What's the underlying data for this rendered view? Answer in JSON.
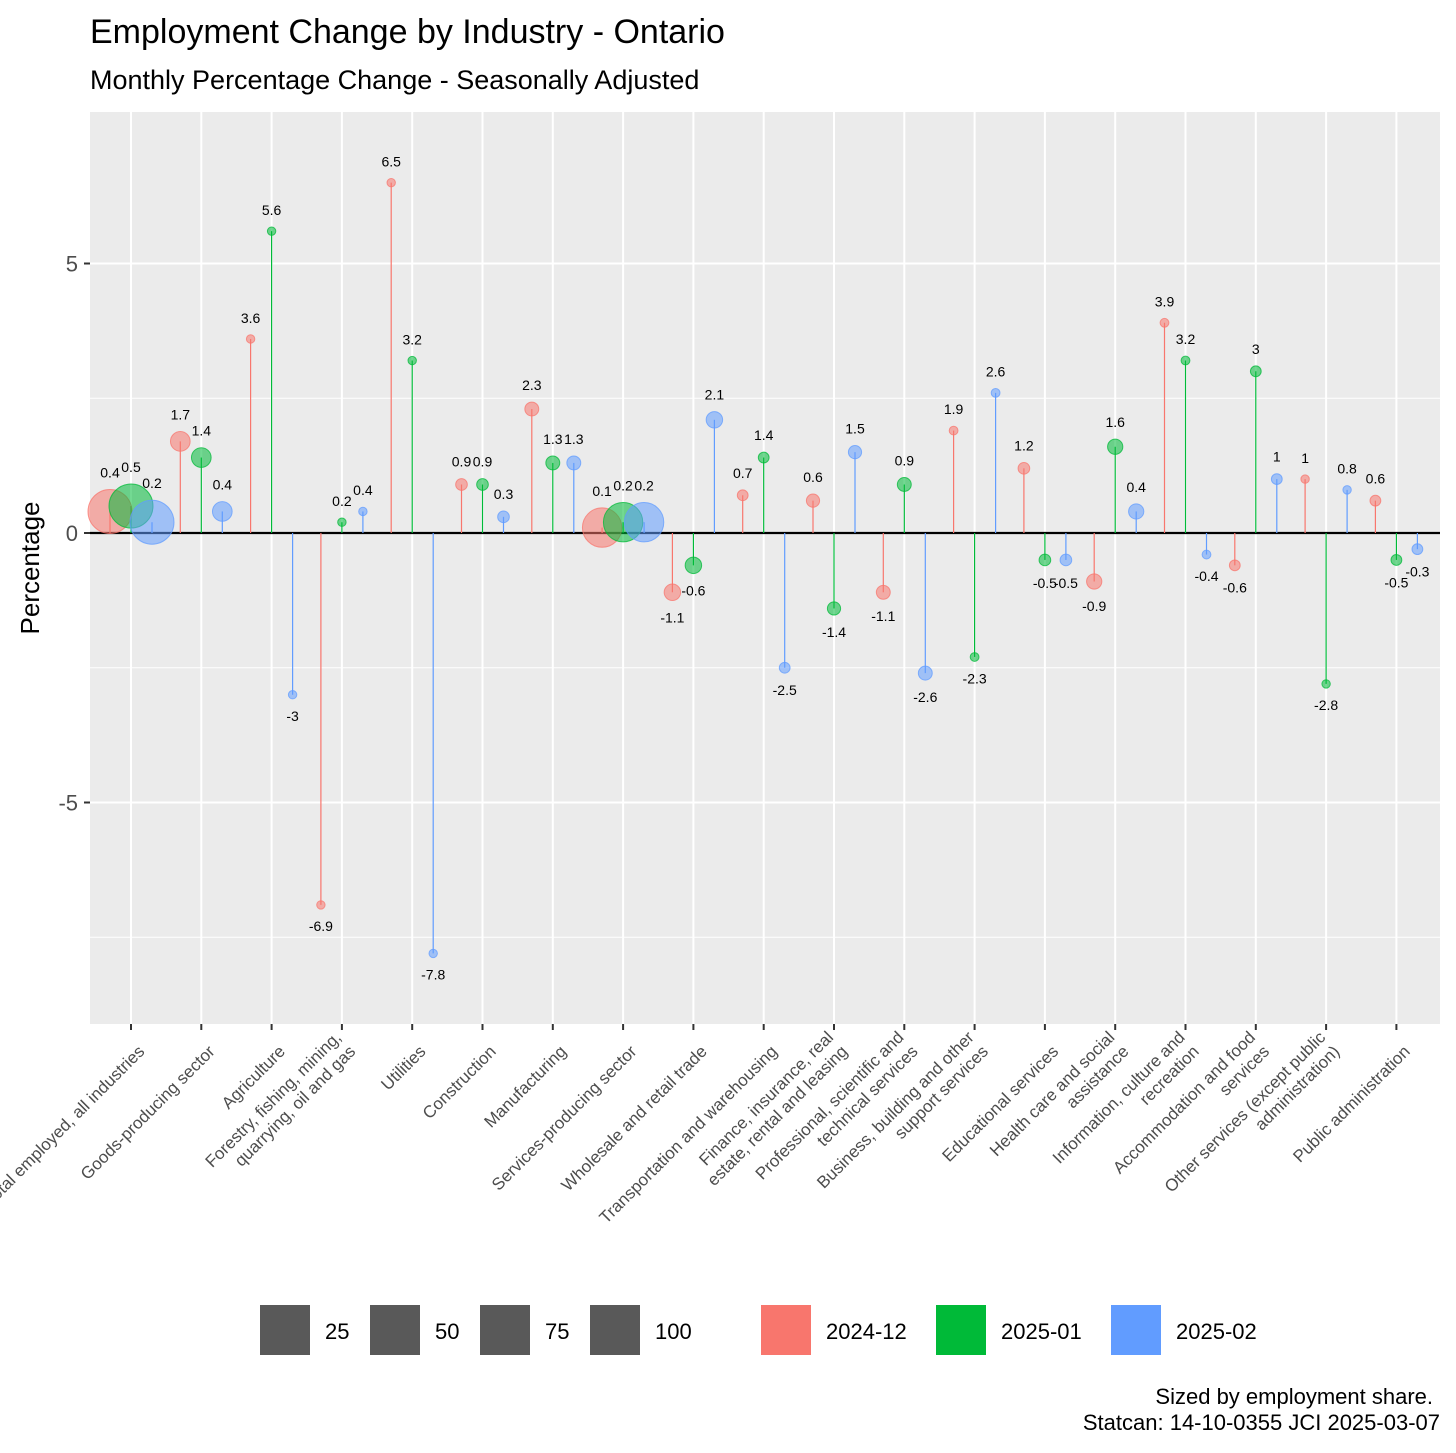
{
  "chart_data": {
    "type": "scatter",
    "title": "Employment Change by Industry - Ontario",
    "subtitle": "Monthly Percentage Change  - Seasonally Adjusted",
    "ylabel": "Percentage",
    "xlabel": "",
    "ylim": [
      -9.2,
      7.8
    ],
    "yticks": [
      -5,
      0,
      5
    ],
    "grid": true,
    "legend_position": "bottom",
    "caption": [
      "Sized by employment share.",
      "Statcan: 14-10-0355 JCI 2025-03-07"
    ],
    "size_legend": [
      25,
      50,
      75,
      100
    ],
    "colors": {
      "2024-12": "#F8766D",
      "2025-01": "#00BA38",
      "2025-02": "#619CFF"
    },
    "categories": [
      "Total employed, all industries",
      "Goods-producing sector",
      "Agriculture",
      "Forestry, fishing, mining, quarrying, oil and gas",
      "Utilities",
      "Construction",
      "Manufacturing",
      "Services-producing sector",
      "Wholesale and retail trade",
      "Transportation and warehousing",
      "Finance, insurance, real estate, rental and leasing",
      "Professional, scientific and technical services",
      "Business, building and other support services",
      "Educational services",
      "Health care and social assistance",
      "Information, culture and recreation",
      "Accommodation and food services",
      "Other services (except public administration)",
      "Public administration"
    ],
    "category_lines": [
      [
        "Total employed, all industries"
      ],
      [
        "Goods-producing sector"
      ],
      [
        "Agriculture"
      ],
      [
        "Forestry, fishing, mining,",
        "quarrying, oil and gas"
      ],
      [
        "Utilities"
      ],
      [
        "Construction"
      ],
      [
        "Manufacturing"
      ],
      [
        "Services-producing sector"
      ],
      [
        "Wholesale and retail trade"
      ],
      [
        "Transportation and warehousing"
      ],
      [
        "Finance, insurance, real",
        "estate, rental and leasing"
      ],
      [
        "Professional, scientific and",
        "technical services"
      ],
      [
        "Business, building and other",
        "support services"
      ],
      [
        "Educational services"
      ],
      [
        "Health care and social",
        "assistance"
      ],
      [
        "Information, culture and",
        "recreation"
      ],
      [
        "Accommodation and food",
        "services"
      ],
      [
        "Other services (except public",
        "administration)"
      ],
      [
        "Public administration"
      ]
    ],
    "employment_share": [
      100,
      20,
      1,
      0.3,
      0.6,
      7,
      10,
      80,
      14,
      6,
      9,
      10,
      4,
      7,
      12,
      4,
      6,
      3,
      6
    ],
    "series": [
      {
        "name": "2024-12",
        "values": [
          0.4,
          1.7,
          3.6,
          -6.9,
          6.5,
          0.9,
          2.3,
          0.1,
          -1.1,
          0.7,
          0.6,
          -1.1,
          1.9,
          1.2,
          -0.9,
          3.9,
          -0.6,
          1,
          0.6
        ]
      },
      {
        "name": "2025-01",
        "values": [
          0.5,
          1.4,
          5.6,
          0.2,
          3.2,
          0.9,
          1.3,
          0.2,
          -0.6,
          1.4,
          -1.4,
          0.9,
          -2.3,
          -0.5,
          1.6,
          3.2,
          3,
          -2.8,
          -0.5
        ]
      },
      {
        "name": "2025-02",
        "values": [
          0.2,
          0.4,
          -3,
          0.4,
          -7.8,
          0.3,
          1.3,
          0.2,
          2.1,
          -2.5,
          1.5,
          -2.6,
          2.6,
          -0.5,
          0.4,
          -0.4,
          1,
          0.8,
          -0.3
        ]
      }
    ]
  }
}
